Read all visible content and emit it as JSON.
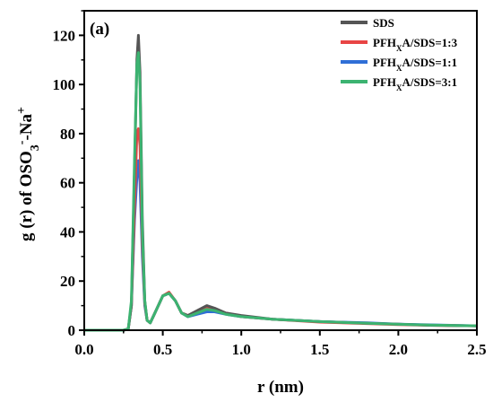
{
  "chart_data": {
    "type": "line",
    "panel_label": "(a)",
    "xlabel": "r (nm)",
    "ylabel": {
      "parts": [
        {
          "text": "g (r) of OSO"
        },
        {
          "text": "3",
          "shift": "sub"
        },
        {
          "text": "-",
          "shift": "super"
        },
        {
          "text": "-Na"
        },
        {
          "text": "+",
          "shift": "super"
        }
      ]
    },
    "xlim": [
      0.0,
      2.5
    ],
    "ylim": [
      0,
      130
    ],
    "xticks": [
      "0.0",
      "0.5",
      "1.0",
      "1.5",
      "2.0",
      "2.5"
    ],
    "yticks": [
      "0",
      "20",
      "40",
      "60",
      "80",
      "100",
      "120"
    ],
    "legend_position": "top-right",
    "series": [
      {
        "name": "SDS",
        "name_parts": [
          {
            "text": "SDS"
          }
        ],
        "color": "#555555",
        "points": [
          [
            0,
            0
          ],
          [
            0.25,
            0
          ],
          [
            0.28,
            0.5
          ],
          [
            0.3,
            10
          ],
          [
            0.32,
            65
          ],
          [
            0.335,
            110
          ],
          [
            0.345,
            120
          ],
          [
            0.355,
            105
          ],
          [
            0.37,
            45
          ],
          [
            0.385,
            12
          ],
          [
            0.4,
            4
          ],
          [
            0.42,
            3
          ],
          [
            0.45,
            7
          ],
          [
            0.5,
            14
          ],
          [
            0.54,
            15
          ],
          [
            0.58,
            12
          ],
          [
            0.62,
            7
          ],
          [
            0.66,
            6
          ],
          [
            0.72,
            8
          ],
          [
            0.78,
            10
          ],
          [
            0.83,
            9
          ],
          [
            0.9,
            7
          ],
          [
            1.0,
            6
          ],
          [
            1.2,
            4.5
          ],
          [
            1.5,
            3.5
          ],
          [
            1.8,
            2.8
          ],
          [
            2.0,
            2.5
          ],
          [
            2.2,
            2
          ],
          [
            2.5,
            1.8
          ]
        ]
      },
      {
        "name": "PFHXA/SDS=1:3",
        "name_parts": [
          {
            "text": "PFH"
          },
          {
            "text": "X",
            "shift": "sub"
          },
          {
            "text": "A/SDS=1:3"
          }
        ],
        "color": "#e84545",
        "points": [
          [
            0,
            0
          ],
          [
            0.25,
            0
          ],
          [
            0.28,
            0.5
          ],
          [
            0.3,
            10
          ],
          [
            0.32,
            50
          ],
          [
            0.335,
            80
          ],
          [
            0.345,
            82
          ],
          [
            0.355,
            75
          ],
          [
            0.37,
            35
          ],
          [
            0.385,
            11
          ],
          [
            0.4,
            4
          ],
          [
            0.42,
            3
          ],
          [
            0.45,
            7
          ],
          [
            0.5,
            14
          ],
          [
            0.54,
            15.5
          ],
          [
            0.58,
            12
          ],
          [
            0.62,
            7
          ],
          [
            0.66,
            6
          ],
          [
            0.72,
            7.5
          ],
          [
            0.78,
            9
          ],
          [
            0.83,
            8.5
          ],
          [
            0.9,
            7
          ],
          [
            1.0,
            5.5
          ],
          [
            1.2,
            4.5
          ],
          [
            1.5,
            3.3
          ],
          [
            1.8,
            2.7
          ],
          [
            2.0,
            2.3
          ],
          [
            2.2,
            2
          ],
          [
            2.5,
            1.8
          ]
        ]
      },
      {
        "name": "PFHXA/SDS=1:1",
        "name_parts": [
          {
            "text": "PFH"
          },
          {
            "text": "X",
            "shift": "sub"
          },
          {
            "text": "A/SDS=1:1"
          }
        ],
        "color": "#2f6fd6",
        "points": [
          [
            0,
            0
          ],
          [
            0.25,
            0
          ],
          [
            0.28,
            0.5
          ],
          [
            0.3,
            10
          ],
          [
            0.32,
            45
          ],
          [
            0.335,
            62
          ],
          [
            0.345,
            69
          ],
          [
            0.355,
            60
          ],
          [
            0.37,
            30
          ],
          [
            0.385,
            10
          ],
          [
            0.4,
            4
          ],
          [
            0.42,
            3
          ],
          [
            0.45,
            7
          ],
          [
            0.5,
            14
          ],
          [
            0.54,
            15
          ],
          [
            0.58,
            12
          ],
          [
            0.62,
            7
          ],
          [
            0.66,
            5.5
          ],
          [
            0.72,
            6.5
          ],
          [
            0.78,
            7.5
          ],
          [
            0.83,
            7.5
          ],
          [
            0.9,
            6.5
          ],
          [
            1.0,
            5.5
          ],
          [
            1.2,
            4.5
          ],
          [
            1.5,
            3.5
          ],
          [
            1.8,
            3
          ],
          [
            2.0,
            2.5
          ],
          [
            2.2,
            2.2
          ],
          [
            2.5,
            1.8
          ]
        ]
      },
      {
        "name": "PFHXA/SDS=3:1",
        "name_parts": [
          {
            "text": "PFH"
          },
          {
            "text": "X",
            "shift": "sub"
          },
          {
            "text": "A/SDS=3:1"
          }
        ],
        "color": "#3cb371",
        "points": [
          [
            0,
            0
          ],
          [
            0.25,
            0
          ],
          [
            0.28,
            0.5
          ],
          [
            0.3,
            12
          ],
          [
            0.32,
            70
          ],
          [
            0.335,
            108
          ],
          [
            0.345,
            113
          ],
          [
            0.355,
            100
          ],
          [
            0.37,
            40
          ],
          [
            0.385,
            12
          ],
          [
            0.4,
            4
          ],
          [
            0.42,
            3
          ],
          [
            0.45,
            7
          ],
          [
            0.5,
            14
          ],
          [
            0.54,
            15
          ],
          [
            0.58,
            12
          ],
          [
            0.62,
            7
          ],
          [
            0.66,
            5.5
          ],
          [
            0.72,
            7
          ],
          [
            0.78,
            8.5
          ],
          [
            0.83,
            8
          ],
          [
            0.9,
            6.5
          ],
          [
            1.0,
            5.5
          ],
          [
            1.2,
            4.5
          ],
          [
            1.5,
            3.5
          ],
          [
            1.8,
            2.8
          ],
          [
            2.0,
            2.4
          ],
          [
            2.2,
            2.1
          ],
          [
            2.5,
            1.8
          ]
        ]
      }
    ]
  }
}
